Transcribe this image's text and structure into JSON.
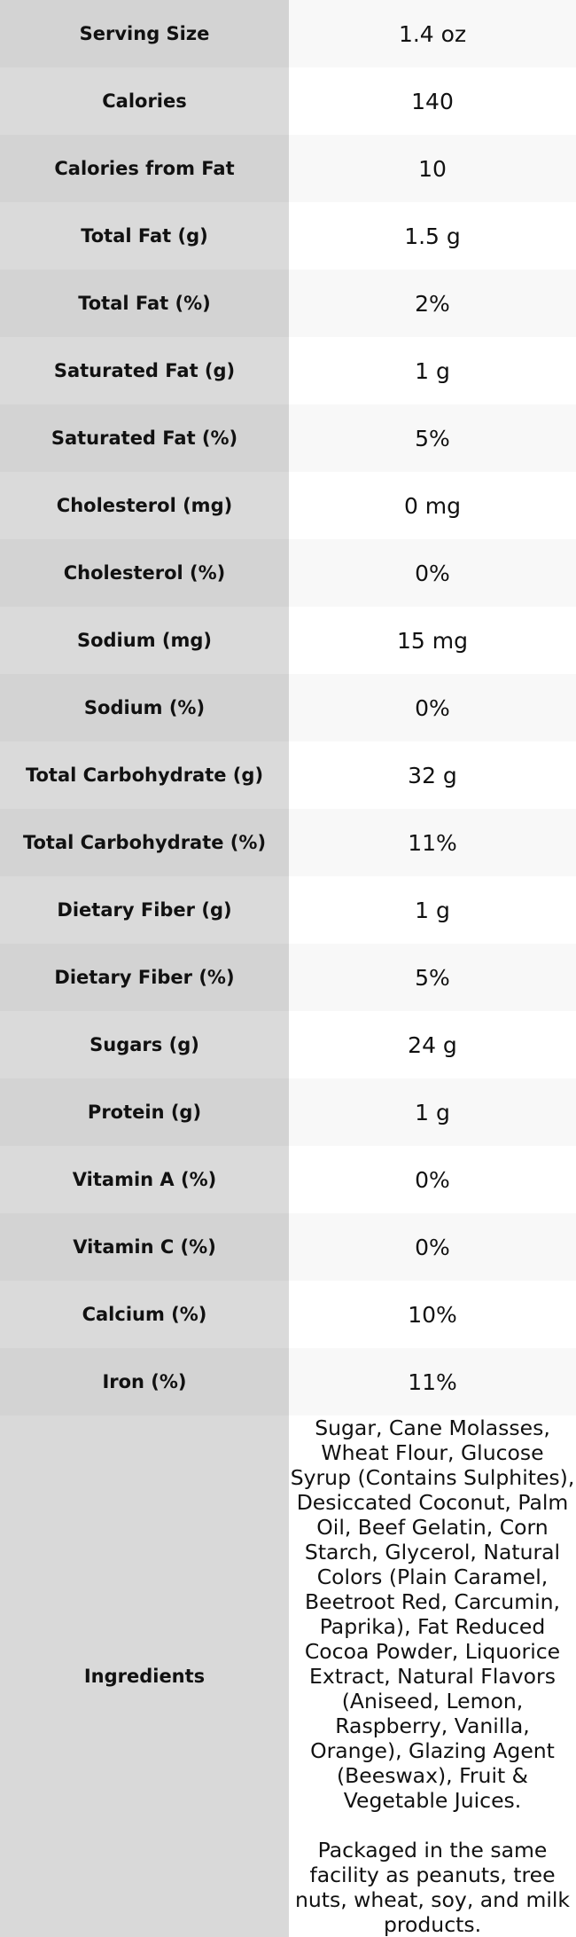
{
  "table": {
    "rows": [
      [
        "Serving Size",
        "1.4 oz"
      ],
      [
        "Calories",
        "140"
      ],
      [
        "Calories from Fat",
        "10"
      ],
      [
        "Total Fat (g)",
        "1.5 g"
      ],
      [
        "Total Fat (%)",
        "2%"
      ],
      [
        "Saturated Fat (g)",
        "1 g"
      ],
      [
        "Saturated Fat (%)",
        "5%"
      ],
      [
        "Cholesterol (mg)",
        "0 mg"
      ],
      [
        "Cholesterol (%)",
        "0%"
      ],
      [
        "Sodium (mg)",
        "15 mg"
      ],
      [
        "Sodium (%)",
        "0%"
      ],
      [
        "Total Carbohydrate (g)",
        "32 g"
      ],
      [
        "Total Carbohydrate (%)",
        "11%"
      ],
      [
        "Dietary Fiber (g)",
        "1 g"
      ],
      [
        "Dietary Fiber (%)",
        "5%"
      ],
      [
        "Sugars (g)",
        "24 g"
      ],
      [
        "Protein (g)",
        "1 g"
      ],
      [
        "Vitamin A (%)",
        "0%"
      ],
      [
        "Vitamin C (%)",
        "0%"
      ],
      [
        "Calcium (%)",
        "10%"
      ],
      [
        "Iron (%)",
        "11%"
      ]
    ],
    "ingredients": {
      "label": "Ingredients",
      "text": "Sugar, Cane Molasses, Wheat Flour, Glucose Syrup (Contains Sulphites), Desiccated Coconut, Palm Oil, Beef Gelatin, Corn Starch, Glycerol, Natural Colors (Plain Caramel, Beetroot Red, Carcumin, Paprika), Fat Reduced Cocoa Powder, Liquorice Extract, Natural Flavors (Aniseed, Lemon, Raspberry, Vanilla, Orange), Glazing Agent (Beeswax), Fruit & Vegetable Juices.",
      "note": "Packaged in the same facility as peanuts, tree nuts, wheat, soy, and milk products."
    }
  }
}
